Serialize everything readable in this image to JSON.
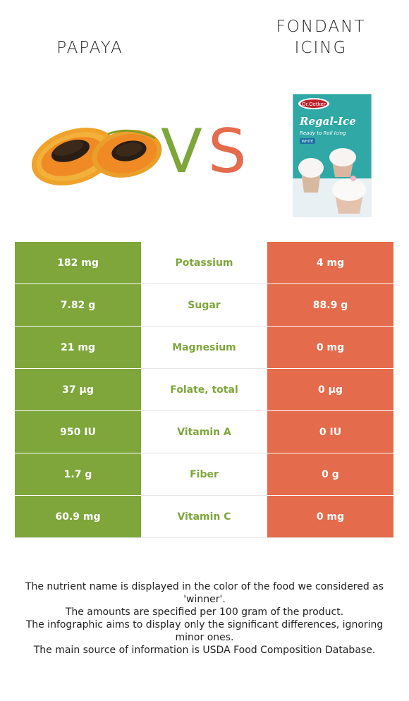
{
  "header": {
    "left_title": "PAPAYA",
    "right_title_line1": "FONDANT",
    "right_title_line2": "ICING",
    "vs_v": "V",
    "vs_s": "S"
  },
  "icing_box": {
    "brand": "Dr.Oetker",
    "product": "Regal-Ice",
    "tagline": "Ready to Roll Icing",
    "variant": "WHITE"
  },
  "colors": {
    "winner_papaya": "#7ea63b",
    "winner_icing": "#e46b4b"
  },
  "rows": [
    {
      "left": "182 mg",
      "nutrient": "Potassium",
      "right": "4 mg",
      "winner": "left"
    },
    {
      "left": "7.82 g",
      "nutrient": "Sugar",
      "right": "88.9 g",
      "winner": "left"
    },
    {
      "left": "21 mg",
      "nutrient": "Magnesium",
      "right": "0 mg",
      "winner": "left"
    },
    {
      "left": "37 µg",
      "nutrient": "Folate, total",
      "right": "0 µg",
      "winner": "left"
    },
    {
      "left": "950 IU",
      "nutrient": "Vitamin A",
      "right": "0 IU",
      "winner": "left"
    },
    {
      "left": "1.7 g",
      "nutrient": "Fiber",
      "right": "0 g",
      "winner": "left"
    },
    {
      "left": "60.9 mg",
      "nutrient": "Vitamin C",
      "right": "0 mg",
      "winner": "left"
    }
  ],
  "notes": [
    "The nutrient name is displayed in the color of the food we considered as 'winner'.",
    "The amounts are specified per 100 gram of the product.",
    "The infographic aims to display only the significant differences, ignoring minor ones.",
    "The main source of information is USDA Food Composition Database."
  ]
}
